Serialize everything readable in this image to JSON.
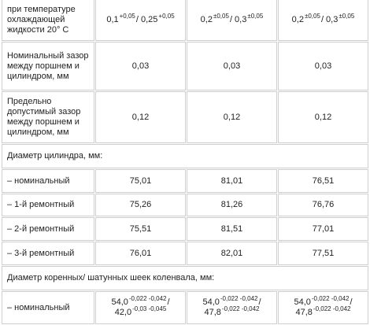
{
  "rows": [
    {
      "label": "при температуре охлаждающей жидкости 20° С",
      "cells": [
        [
          [
            {
              "text": "0,1"
            },
            {
              "text": "+0,05",
              "sup": true
            },
            {
              "text": "/ 0,25"
            },
            {
              "text": "+0,05",
              "sup": true
            }
          ]
        ],
        [
          [
            {
              "text": "0,2"
            },
            {
              "text": "±0,05",
              "sup": true
            },
            {
              "text": "/ 0,3"
            },
            {
              "text": "±0,05",
              "sup": true
            }
          ]
        ],
        [
          [
            {
              "text": "0,2"
            },
            {
              "text": "±0,05",
              "sup": true
            },
            {
              "text": "/ 0,3"
            },
            {
              "text": "±0,05",
              "sup": true
            }
          ]
        ]
      ]
    },
    {
      "label": "Номинальный зазор между поршнем и цилиндром, мм",
      "cells": [
        "0,03",
        "0,03",
        "0,03"
      ]
    },
    {
      "label": "Предельно допустимый зазор между поршнем и цилиндром, мм",
      "cells": [
        "0,12",
        "0,12",
        "0,12"
      ]
    },
    {
      "section": "Диаметр цилиндра, мм:"
    },
    {
      "label": "– номинальный",
      "cells": [
        "75,01",
        "81,01",
        "76,51"
      ]
    },
    {
      "label": "– 1-й ремонтный",
      "cells": [
        "75,26",
        "81,26",
        "76,76"
      ]
    },
    {
      "label": "– 2-й ремонтный",
      "cells": [
        "75,51",
        "81,51",
        "77,01"
      ]
    },
    {
      "label": "– 3-й ремонтный",
      "cells": [
        "76,01",
        "82,01",
        "77,51"
      ]
    },
    {
      "section": "Диаметр коренных/ шатунных шеек коленвала, мм:"
    },
    {
      "label": "– номинальный",
      "cells": [
        [
          [
            {
              "text": "54,0"
            },
            {
              "text": "-0,022 -0,042",
              "sup": true
            },
            {
              "text": "/"
            }
          ],
          [
            {
              "text": "42,0"
            },
            {
              "text": "-0,03 -0,045",
              "sup": true
            }
          ]
        ],
        [
          [
            {
              "text": "54,0"
            },
            {
              "text": "-0,022 -0,042",
              "sup": true
            },
            {
              "text": "/"
            }
          ],
          [
            {
              "text": "47,8"
            },
            {
              "text": "-0,022 -0,042",
              "sup": true
            }
          ]
        ],
        [
          [
            {
              "text": "54,0"
            },
            {
              "text": "-0,022 -0,042",
              "sup": true
            },
            {
              "text": "/"
            }
          ],
          [
            {
              "text": "47,8"
            },
            {
              "text": "-0,022 -0,042",
              "sup": true
            }
          ]
        ]
      ]
    }
  ]
}
